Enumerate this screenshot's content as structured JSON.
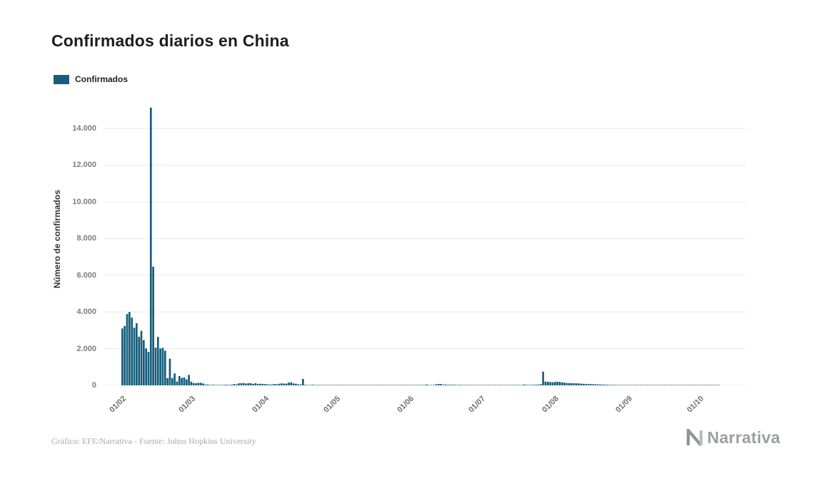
{
  "title": "Confirmados diarios en China",
  "legend": {
    "label": "Confirmados"
  },
  "footer": {
    "credits": "Gráfico: EFE/Narrativa - Fuente: Johns Hopkins University",
    "logo_text": "Narrativa"
  },
  "colors": {
    "bar": "#175d7b",
    "grid": "#e9e9e9",
    "tick_text": "#7d7d7d"
  },
  "chart_data": {
    "type": "bar",
    "title": "Confirmados diarios en China",
    "series_name": "Confirmados",
    "xlabel": "",
    "ylabel": "Número de confirmados",
    "grid": true,
    "legend_position": "top-left",
    "start_date": "2020-02-01",
    "end_date": "2020-10-09",
    "frequency": "daily",
    "ylim": [
      0,
      15200
    ],
    "yticks": [
      {
        "label": "0",
        "value": 0
      },
      {
        "label": "2.000",
        "value": 2000
      },
      {
        "label": "4.000",
        "value": 4000
      },
      {
        "label": "6.000",
        "value": 6000
      },
      {
        "label": "8.000",
        "value": 8000
      },
      {
        "label": "10.000",
        "value": 10000
      },
      {
        "label": "12.000",
        "value": 12000
      },
      {
        "label": "14.000",
        "value": 14000
      }
    ],
    "xticks": [
      {
        "label": "01/02",
        "day": 0
      },
      {
        "label": "01/03",
        "day": 29
      },
      {
        "label": "01/04",
        "day": 60
      },
      {
        "label": "01/05",
        "day": 90
      },
      {
        "label": "01/06",
        "day": 121
      },
      {
        "label": "01/07",
        "day": 151
      },
      {
        "label": "01/08",
        "day": 182
      },
      {
        "label": "01/09",
        "day": 213
      },
      {
        "label": "01/10",
        "day": 243
      }
    ],
    "values": [
      3100,
      3235,
      3887,
      4000,
      3694,
      3143,
      3385,
      2652,
      2973,
      2467,
      2015,
      1820,
      15136,
      6463,
      2055,
      2641,
      2008,
      2048,
      1888,
      394,
      1450,
      397,
      648,
      214,
      508,
      406,
      433,
      327,
      573,
      202,
      125,
      119,
      139,
      143,
      102,
      46,
      45,
      20,
      31,
      26,
      10,
      19,
      27,
      29,
      39,
      28,
      39,
      78,
      54,
      110,
      115,
      127,
      98,
      119,
      121,
      84,
      119,
      78,
      90,
      79,
      72,
      56,
      43,
      52,
      75,
      62,
      89,
      108,
      99,
      97,
      152,
      170,
      108,
      89,
      57,
      51,
      352,
      31,
      22,
      16,
      37,
      12,
      10,
      15,
      20,
      11,
      6,
      22,
      4,
      12,
      12,
      2,
      3,
      2,
      1,
      2,
      17,
      1,
      14,
      20,
      17,
      7,
      2,
      3,
      8,
      7,
      5,
      7,
      6,
      5,
      2,
      4,
      3,
      11,
      7,
      1,
      2,
      23,
      4,
      2,
      16,
      3,
      5,
      1,
      11,
      4,
      5,
      4,
      49,
      14,
      3,
      10,
      57,
      78,
      75,
      40,
      44,
      28,
      32,
      35,
      31,
      26,
      29,
      19,
      14,
      21,
      17,
      14,
      12,
      19,
      8,
      3,
      5,
      19,
      8,
      4,
      4,
      8,
      9,
      9,
      7,
      13,
      8,
      16,
      10,
      11,
      12,
      16,
      22,
      46,
      31,
      15,
      28,
      31,
      37,
      46,
      61,
      750,
      204,
      195,
      180,
      170,
      185,
      200,
      190,
      165,
      150,
      132,
      125,
      120,
      118,
      112,
      105,
      95,
      85,
      80,
      75,
      70,
      65,
      60,
      55,
      50,
      45,
      40,
      35,
      30,
      28,
      25,
      22,
      20,
      18,
      16,
      15,
      12,
      10,
      10,
      11,
      12,
      14,
      10,
      8,
      9,
      7,
      8,
      10,
      12,
      8,
      9,
      5,
      10,
      9,
      13,
      8,
      6,
      12,
      7,
      8,
      15,
      14,
      20,
      9,
      11,
      12,
      11,
      19,
      9,
      10,
      12,
      8,
      10,
      11,
      15
    ]
  }
}
